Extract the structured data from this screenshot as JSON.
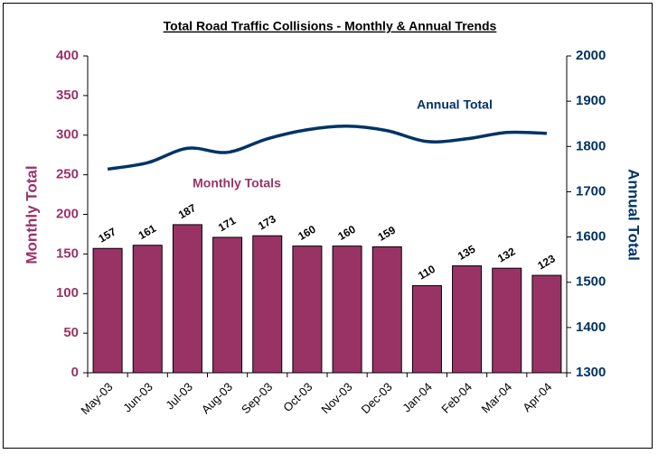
{
  "chart_data": {
    "type": "bar",
    "title": "Total Road Traffic Collisions - Monthly & Annual Trends",
    "y_label": "Monthly Total",
    "y2_label": "Annual Total",
    "categories": [
      "May-03",
      "Jun-03",
      "Jul-03",
      "Aug-03",
      "Sep-03",
      "Oct-03",
      "Nov-03",
      "Dec-03",
      "Jan-04",
      "Feb-04",
      "Mar-04",
      "Apr-04"
    ],
    "series": [
      {
        "name": "Monthly Totals",
        "type": "bar",
        "color": "#993366",
        "values": [
          157,
          161,
          187,
          171,
          173,
          160,
          160,
          159,
          110,
          135,
          132,
          123
        ]
      },
      {
        "name": "Annual Total",
        "type": "line",
        "axis": "y2",
        "color": "#003366",
        "values": [
          1750,
          1764,
          1796,
          1787,
          1817,
          1837,
          1845,
          1835,
          1811,
          1817,
          1831,
          1829
        ]
      }
    ],
    "ylim": [
      0,
      400
    ],
    "yticks": [
      0,
      50,
      100,
      150,
      200,
      250,
      300,
      350,
      400
    ],
    "y2lim": [
      1300,
      2000
    ],
    "y2ticks": [
      1300,
      1400,
      1500,
      1600,
      1700,
      1800,
      1900,
      2000
    ],
    "grid": false
  }
}
